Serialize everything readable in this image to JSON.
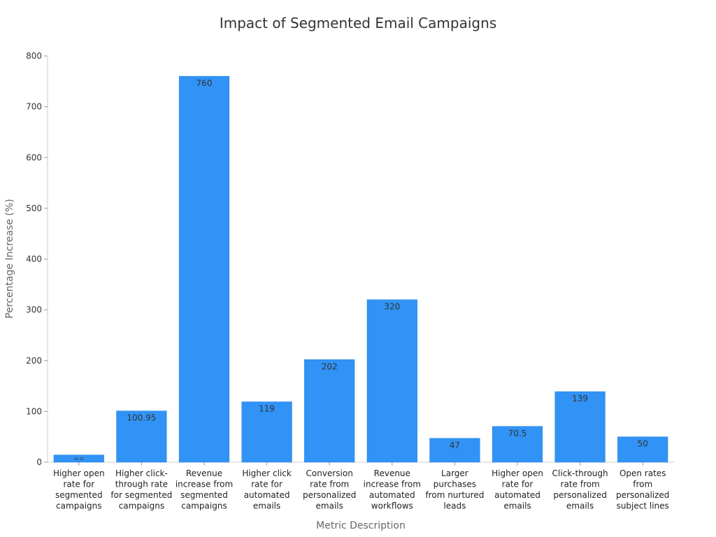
{
  "chart_data": {
    "type": "bar",
    "title": "Impact of Segmented Email Campaigns",
    "xlabel": "Metric Description",
    "ylabel": "Percentage Increase (%)",
    "ylim": [
      0,
      800
    ],
    "yticks": [
      0,
      100,
      200,
      300,
      400,
      500,
      600,
      700,
      800
    ],
    "grid": false,
    "bar_color": "#3093f5",
    "categories": [
      [
        "Higher open",
        "rate for",
        "segmented",
        "campaigns"
      ],
      [
        "Higher click-",
        "through rate",
        "for segmented",
        "campaigns"
      ],
      [
        "Revenue",
        "increase from",
        "segmented",
        "campaigns"
      ],
      [
        "Higher click",
        "rate for",
        "automated",
        "emails"
      ],
      [
        "Conversion",
        "rate from",
        "personalized",
        "emails"
      ],
      [
        "Revenue",
        "increase from",
        "automated",
        "workflows"
      ],
      [
        "Larger",
        "purchases",
        "from nurtured",
        "leads"
      ],
      [
        "Higher open",
        "rate for",
        "automated",
        "emails"
      ],
      [
        "Click-through",
        "rate from",
        "personalized",
        "emails"
      ],
      [
        "Open rates",
        "from",
        "personalized",
        "subject lines"
      ]
    ],
    "values": [
      14.31,
      100.95,
      760,
      119,
      202,
      320,
      47,
      70.5,
      139,
      50
    ],
    "data_labels": [
      "14.31",
      "100.95",
      "760",
      "119",
      "202",
      "320",
      "47",
      "70.5",
      "139",
      "50"
    ]
  }
}
